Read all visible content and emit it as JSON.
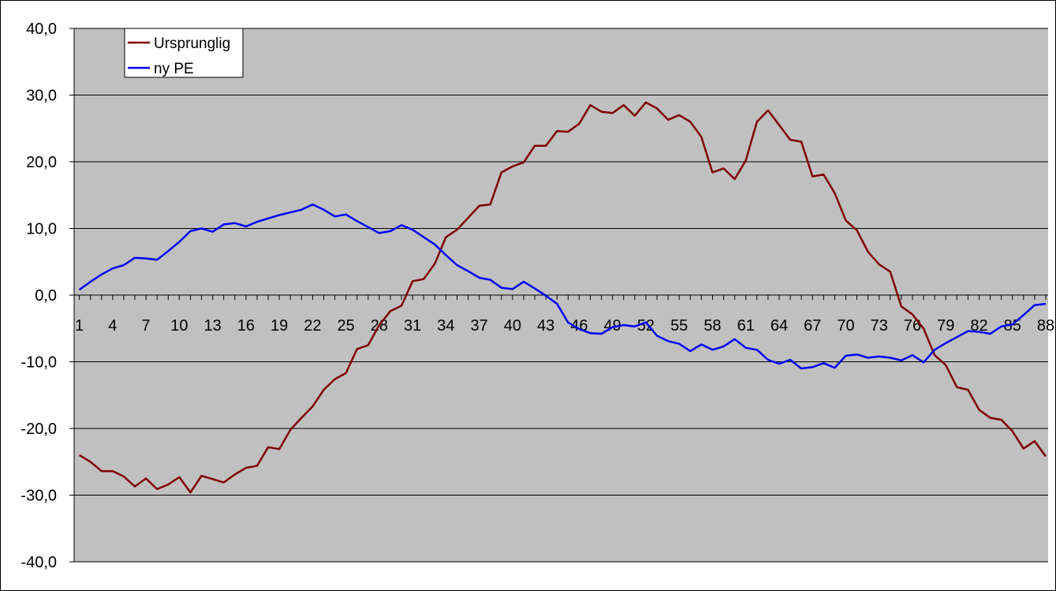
{
  "chart_data": {
    "type": "line",
    "title": "",
    "xlabel": "",
    "ylabel": "",
    "ylim": [
      -40,
      40
    ],
    "y_ticks": [
      "40,0",
      "30,0",
      "20,0",
      "10,0",
      "0,0",
      "-10,0",
      "-20,0",
      "-30,0",
      "-40,0"
    ],
    "y_tick_values": [
      40,
      30,
      20,
      10,
      0,
      -10,
      -20,
      -30,
      -40
    ],
    "x_ticks": [
      "1",
      "4",
      "7",
      "10",
      "13",
      "16",
      "19",
      "22",
      "25",
      "28",
      "31",
      "34",
      "37",
      "40",
      "43",
      "46",
      "49",
      "52",
      "55",
      "58",
      "61",
      "64",
      "67",
      "70",
      "73",
      "76",
      "79",
      "82",
      "85",
      "88"
    ],
    "x_tick_values": [
      1,
      4,
      7,
      10,
      13,
      16,
      19,
      22,
      25,
      28,
      31,
      34,
      37,
      40,
      43,
      46,
      49,
      52,
      55,
      58,
      61,
      64,
      67,
      70,
      73,
      76,
      79,
      82,
      85,
      88
    ],
    "x_range": [
      1,
      88
    ],
    "grid": true,
    "background_color": "#c0c0c0",
    "legend_position": "top-left",
    "series": [
      {
        "name": "Ursprunglig",
        "color": "#800000",
        "values": [
          -24.0,
          -25.0,
          -26.4,
          -26.4,
          -27.2,
          -28.7,
          -27.5,
          -29.1,
          -28.4,
          -27.3,
          -29.6,
          -27.1,
          -27.6,
          -28.1,
          -26.9,
          -25.9,
          -25.6,
          -22.8,
          -23.1,
          -20.2,
          -18.4,
          -16.7,
          -14.2,
          -12.6,
          -11.7,
          -8.1,
          -7.5,
          -4.5,
          -2.4,
          -1.6,
          2.1,
          2.4,
          4.7,
          8.7,
          9.8,
          11.6,
          13.4,
          13.6,
          18.4,
          19.3,
          19.9,
          22.4,
          22.4,
          24.6,
          24.5,
          25.7,
          28.5,
          27.5,
          27.3,
          28.5,
          26.9,
          28.9,
          28.0,
          26.3,
          27.0,
          26.0,
          23.7,
          18.4,
          19.0,
          17.4,
          20.2,
          26.0,
          27.7,
          25.5,
          23.3,
          23.0,
          17.8,
          18.1,
          15.3,
          11.2,
          9.7,
          6.5,
          4.6,
          3.5,
          -1.7,
          -2.9,
          -5.0,
          -9.0,
          -10.5,
          -13.8,
          -14.2,
          -17.2,
          -18.4,
          -18.7,
          -20.4,
          -23.0,
          -21.9,
          -24.2
        ]
      },
      {
        "name": "ny PE",
        "color": "#0000ff",
        "values": [
          0.8,
          2.0,
          3.1,
          4.0,
          4.5,
          5.6,
          5.5,
          5.3,
          6.6,
          8.0,
          9.6,
          10.0,
          9.5,
          10.6,
          10.8,
          10.3,
          11.0,
          11.5,
          12.0,
          12.4,
          12.8,
          13.6,
          12.8,
          11.8,
          12.1,
          11.1,
          10.2,
          9.3,
          9.6,
          10.5,
          9.8,
          8.7,
          7.6,
          6.0,
          4.5,
          3.6,
          2.6,
          2.3,
          1.1,
          0.9,
          2.0,
          1.0,
          -0.1,
          -1.3,
          -4.1,
          -5.1,
          -5.7,
          -5.8,
          -4.8,
          -4.5,
          -4.7,
          -4.1,
          -6.1,
          -6.9,
          -7.3,
          -8.4,
          -7.4,
          -8.2,
          -7.7,
          -6.6,
          -7.9,
          -8.2,
          -9.7,
          -10.3,
          -9.7,
          -11.0,
          -10.8,
          -10.2,
          -10.9,
          -9.1,
          -8.9,
          -9.4,
          -9.2,
          -9.4,
          -9.8,
          -9.0,
          -10.1,
          -8.2,
          -7.2,
          -6.3,
          -5.4,
          -5.5,
          -5.8,
          -4.7,
          -4.4,
          -3.0,
          -1.5,
          -1.3
        ]
      }
    ]
  }
}
